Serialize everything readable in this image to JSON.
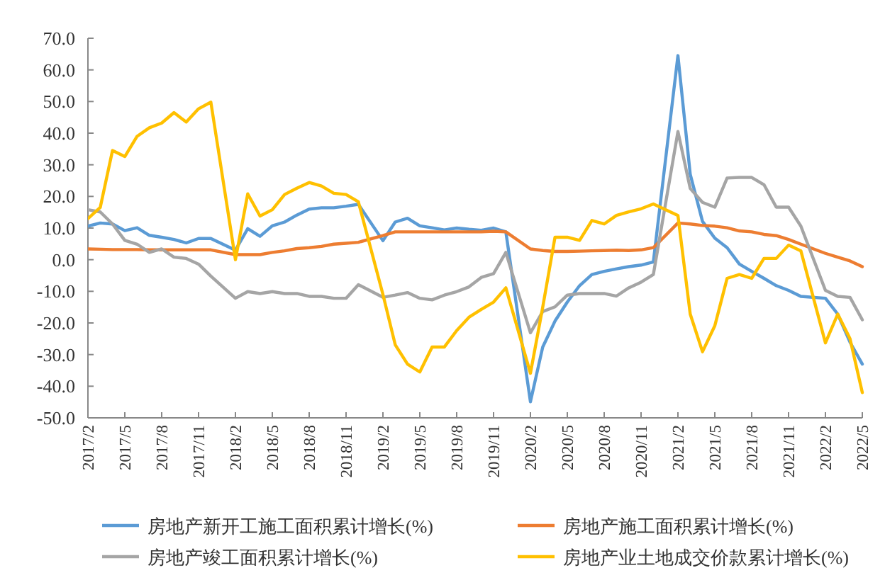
{
  "chart_data": {
    "type": "line",
    "x": [
      "2017-02",
      "2017-03",
      "2017-04",
      "2017-05",
      "2017-06",
      "2017-07",
      "2017-08",
      "2017-09",
      "2017-10",
      "2017-11",
      "2017-12",
      "2018-02",
      "2018-03",
      "2018-04",
      "2018-05",
      "2018-06",
      "2018-07",
      "2018-08",
      "2018-09",
      "2018-10",
      "2018-11",
      "2018-12",
      "2019-02",
      "2019-03",
      "2019-04",
      "2019-05",
      "2019-06",
      "2019-07",
      "2019-08",
      "2019-09",
      "2019-10",
      "2019-11",
      "2019-12",
      "2020-02",
      "2020-03",
      "2020-04",
      "2020-05",
      "2020-06",
      "2020-07",
      "2020-08",
      "2020-09",
      "2020-10",
      "2020-11",
      "2020-12",
      "2021-02",
      "2021-03",
      "2021-04",
      "2021-05",
      "2021-06",
      "2021-07",
      "2021-08",
      "2021-09",
      "2021-10",
      "2021-11",
      "2021-12",
      "2022-02",
      "2022-03",
      "2022-04",
      "2022-05"
    ],
    "series": [
      {
        "name": "房地产新开工施工面积累计增长(%)",
        "color": "#5b9bd5",
        "values": [
          10.6,
          11.6,
          11.3,
          9.2,
          10.1,
          7.7,
          7.1,
          6.4,
          5.3,
          6.7,
          6.7,
          3,
          9.8,
          7.4,
          10.7,
          11.9,
          14.1,
          16,
          16.4,
          16.4,
          16.9,
          17.5,
          6,
          11.9,
          13.1,
          10.7,
          10.1,
          9.4,
          10,
          9.6,
          9.3,
          10,
          8.8,
          -44.9,
          -27.6,
          -19.4,
          -13.4,
          -8.2,
          -4.7,
          -3.7,
          -2.9,
          -2.2,
          -1.7,
          -0.7,
          64.5,
          27,
          12.1,
          6.8,
          3.8,
          -1.4,
          -3.7,
          -5.9,
          -8.2,
          -9.7,
          -11.6,
          -12.2,
          -17.2,
          -26.1,
          -33
        ]
      },
      {
        "name": "房地产施工面积累计增长(%)",
        "color": "#ed7d31",
        "values": [
          3.4,
          3.3,
          3.2,
          3.2,
          3.2,
          3.1,
          3.1,
          3.1,
          3.1,
          3.1,
          3.1,
          1.6,
          1.6,
          1.6,
          2.3,
          2.8,
          3.5,
          3.8,
          4.2,
          4.9,
          5.2,
          5.5,
          7.6,
          8.8,
          8.8,
          8.8,
          8.8,
          8.8,
          8.8,
          8.8,
          8.8,
          9,
          8.8,
          3.4,
          2.9,
          2.6,
          2.6,
          2.7,
          2.8,
          2.9,
          3,
          2.9,
          3.1,
          3.8,
          11.6,
          11.3,
          10.8,
          10.6,
          10.1,
          9.1,
          8.8,
          8,
          7.6,
          6.4,
          4.9,
          2,
          0.8,
          -0.4,
          -2.2
        ]
      },
      {
        "name": "房地产竣工面积累计增长(%)",
        "color": "#a5a5a5",
        "values": [
          15.8,
          15.1,
          11.3,
          6.1,
          4.9,
          2.3,
          3.4,
          0.8,
          0.4,
          -1.4,
          -5.2,
          -12.2,
          -10.1,
          -10.7,
          -10.1,
          -10.7,
          -10.7,
          -11.6,
          -11.6,
          -12.2,
          -12.2,
          -7.9,
          -11.9,
          -11.2,
          -10.4,
          -12.2,
          -12.7,
          -11.2,
          -10.1,
          -8.6,
          -5.6,
          -4.4,
          2.3,
          -23.1,
          -16.4,
          -14.9,
          -11.2,
          -10.7,
          -10.7,
          -10.7,
          -11.5,
          -8.9,
          -7.1,
          -4.7,
          40.5,
          22.5,
          18.1,
          16.6,
          25.8,
          26,
          26,
          23.7,
          16.6,
          16.6,
          10.6,
          -9.7,
          -11.6,
          -11.9,
          -19
        ]
      },
      {
        "name": "房地产业土地成交价款累计增长(%)",
        "color": "#ffc000",
        "values": [
          13,
          16.5,
          34.5,
          32.6,
          39,
          41.7,
          43.2,
          46.5,
          43.5,
          47.7,
          49.8,
          0,
          20.8,
          13.8,
          15.8,
          20.6,
          22.6,
          24.4,
          23.3,
          21,
          20.6,
          18.3,
          -11,
          -26.9,
          -33,
          -35.5,
          -27.6,
          -27.6,
          -22.4,
          -18.2,
          -15.7,
          -13.4,
          -8.9,
          -35.9,
          -15,
          7.1,
          7.1,
          6.1,
          12.4,
          11.3,
          14,
          15.1,
          16.1,
          17.6,
          14,
          -17.2,
          -29.1,
          -20.9,
          -5.9,
          -4.7,
          -5.9,
          0.4,
          0.4,
          4.6,
          2.8,
          -26.3,
          -17.2,
          -25,
          -42
        ]
      }
    ],
    "xlim": [
      "2017-02",
      "2022-05"
    ],
    "xticks": [
      {
        "value": "2017-02",
        "label": "2017/2"
      },
      {
        "value": "2017-05",
        "label": "2017/5"
      },
      {
        "value": "2017-08",
        "label": "2017/8"
      },
      {
        "value": "2017-11",
        "label": "2017/11"
      },
      {
        "value": "2018-02",
        "label": "2018/2"
      },
      {
        "value": "2018-05",
        "label": "2018/5"
      },
      {
        "value": "2018-08",
        "label": "2018/8"
      },
      {
        "value": "2018-11",
        "label": "2018/11"
      },
      {
        "value": "2019-02",
        "label": "2019/2"
      },
      {
        "value": "2019-05",
        "label": "2019/5"
      },
      {
        "value": "2019-08",
        "label": "2019/8"
      },
      {
        "value": "2019-11",
        "label": "2019/11"
      },
      {
        "value": "2020-02",
        "label": "2020/2"
      },
      {
        "value": "2020-05",
        "label": "2020/5"
      },
      {
        "value": "2020-08",
        "label": "2020/8"
      },
      {
        "value": "2020-11",
        "label": "2020/11"
      },
      {
        "value": "2021-02",
        "label": "2021/2"
      },
      {
        "value": "2021-05",
        "label": "2021/5"
      },
      {
        "value": "2021-08",
        "label": "2021/8"
      },
      {
        "value": "2021-11",
        "label": "2021/11"
      },
      {
        "value": "2022-02",
        "label": "2022/2"
      },
      {
        "value": "2022-05",
        "label": "2022/5"
      }
    ],
    "ylim": [
      -50,
      70
    ],
    "yticks": [
      {
        "value": -50,
        "label": "-50.0"
      },
      {
        "value": -40,
        "label": "-40.0"
      },
      {
        "value": -30,
        "label": "-30.0"
      },
      {
        "value": -20,
        "label": "-20.0"
      },
      {
        "value": -10,
        "label": "-10.0"
      },
      {
        "value": 0,
        "label": "0.0"
      },
      {
        "value": 10,
        "label": "10.0"
      },
      {
        "value": 20,
        "label": "20.0"
      },
      {
        "value": 30,
        "label": "30.0"
      },
      {
        "value": 40,
        "label": "40.0"
      },
      {
        "value": 50,
        "label": "50.0"
      },
      {
        "value": 60,
        "label": "60.0"
      },
      {
        "value": 70,
        "label": "70.0"
      }
    ],
    "legend": "bottom"
  }
}
